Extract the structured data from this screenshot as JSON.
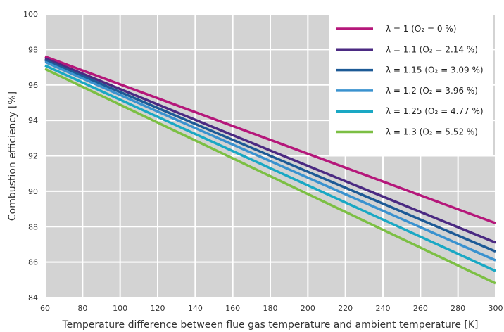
{
  "chart_data": {
    "type": "line",
    "xlabel": "Temperature difference between flue gas temperature and ambient temperature [K]",
    "ylabel": "Combustion efficiency [%]",
    "xlim": [
      60,
      300
    ],
    "ylim": [
      84,
      100
    ],
    "xticks": [
      60,
      80,
      100,
      120,
      140,
      160,
      180,
      200,
      220,
      240,
      260,
      280,
      300
    ],
    "yticks": [
      84,
      86,
      88,
      90,
      92,
      94,
      96,
      98,
      100
    ],
    "x": [
      60,
      300
    ],
    "grid": true,
    "legend_position": "top-right",
    "series": [
      {
        "name": "λ = 1 (O₂ = 0 %)",
        "color": "#b5177a",
        "values": [
          97.6,
          88.2
        ]
      },
      {
        "name": "λ = 1.1 (O₂ = 2.14 %)",
        "color": "#4b2a82",
        "values": [
          97.5,
          87.1
        ]
      },
      {
        "name": "λ = 1.15 (O₂ = 3.09 %)",
        "color": "#1d5a96",
        "values": [
          97.4,
          86.6
        ]
      },
      {
        "name": "λ = 1.2 (O₂ = 3.96 %)",
        "color": "#3a92cf",
        "values": [
          97.3,
          86.1
        ]
      },
      {
        "name": "λ = 1.25 (O₂ = 4.77 %)",
        "color": "#1aa8c4",
        "values": [
          97.1,
          85.5
        ]
      },
      {
        "name": "λ = 1.3 (O₂ = 5.52 %)",
        "color": "#7cbf44",
        "values": [
          96.9,
          84.8
        ]
      }
    ]
  }
}
